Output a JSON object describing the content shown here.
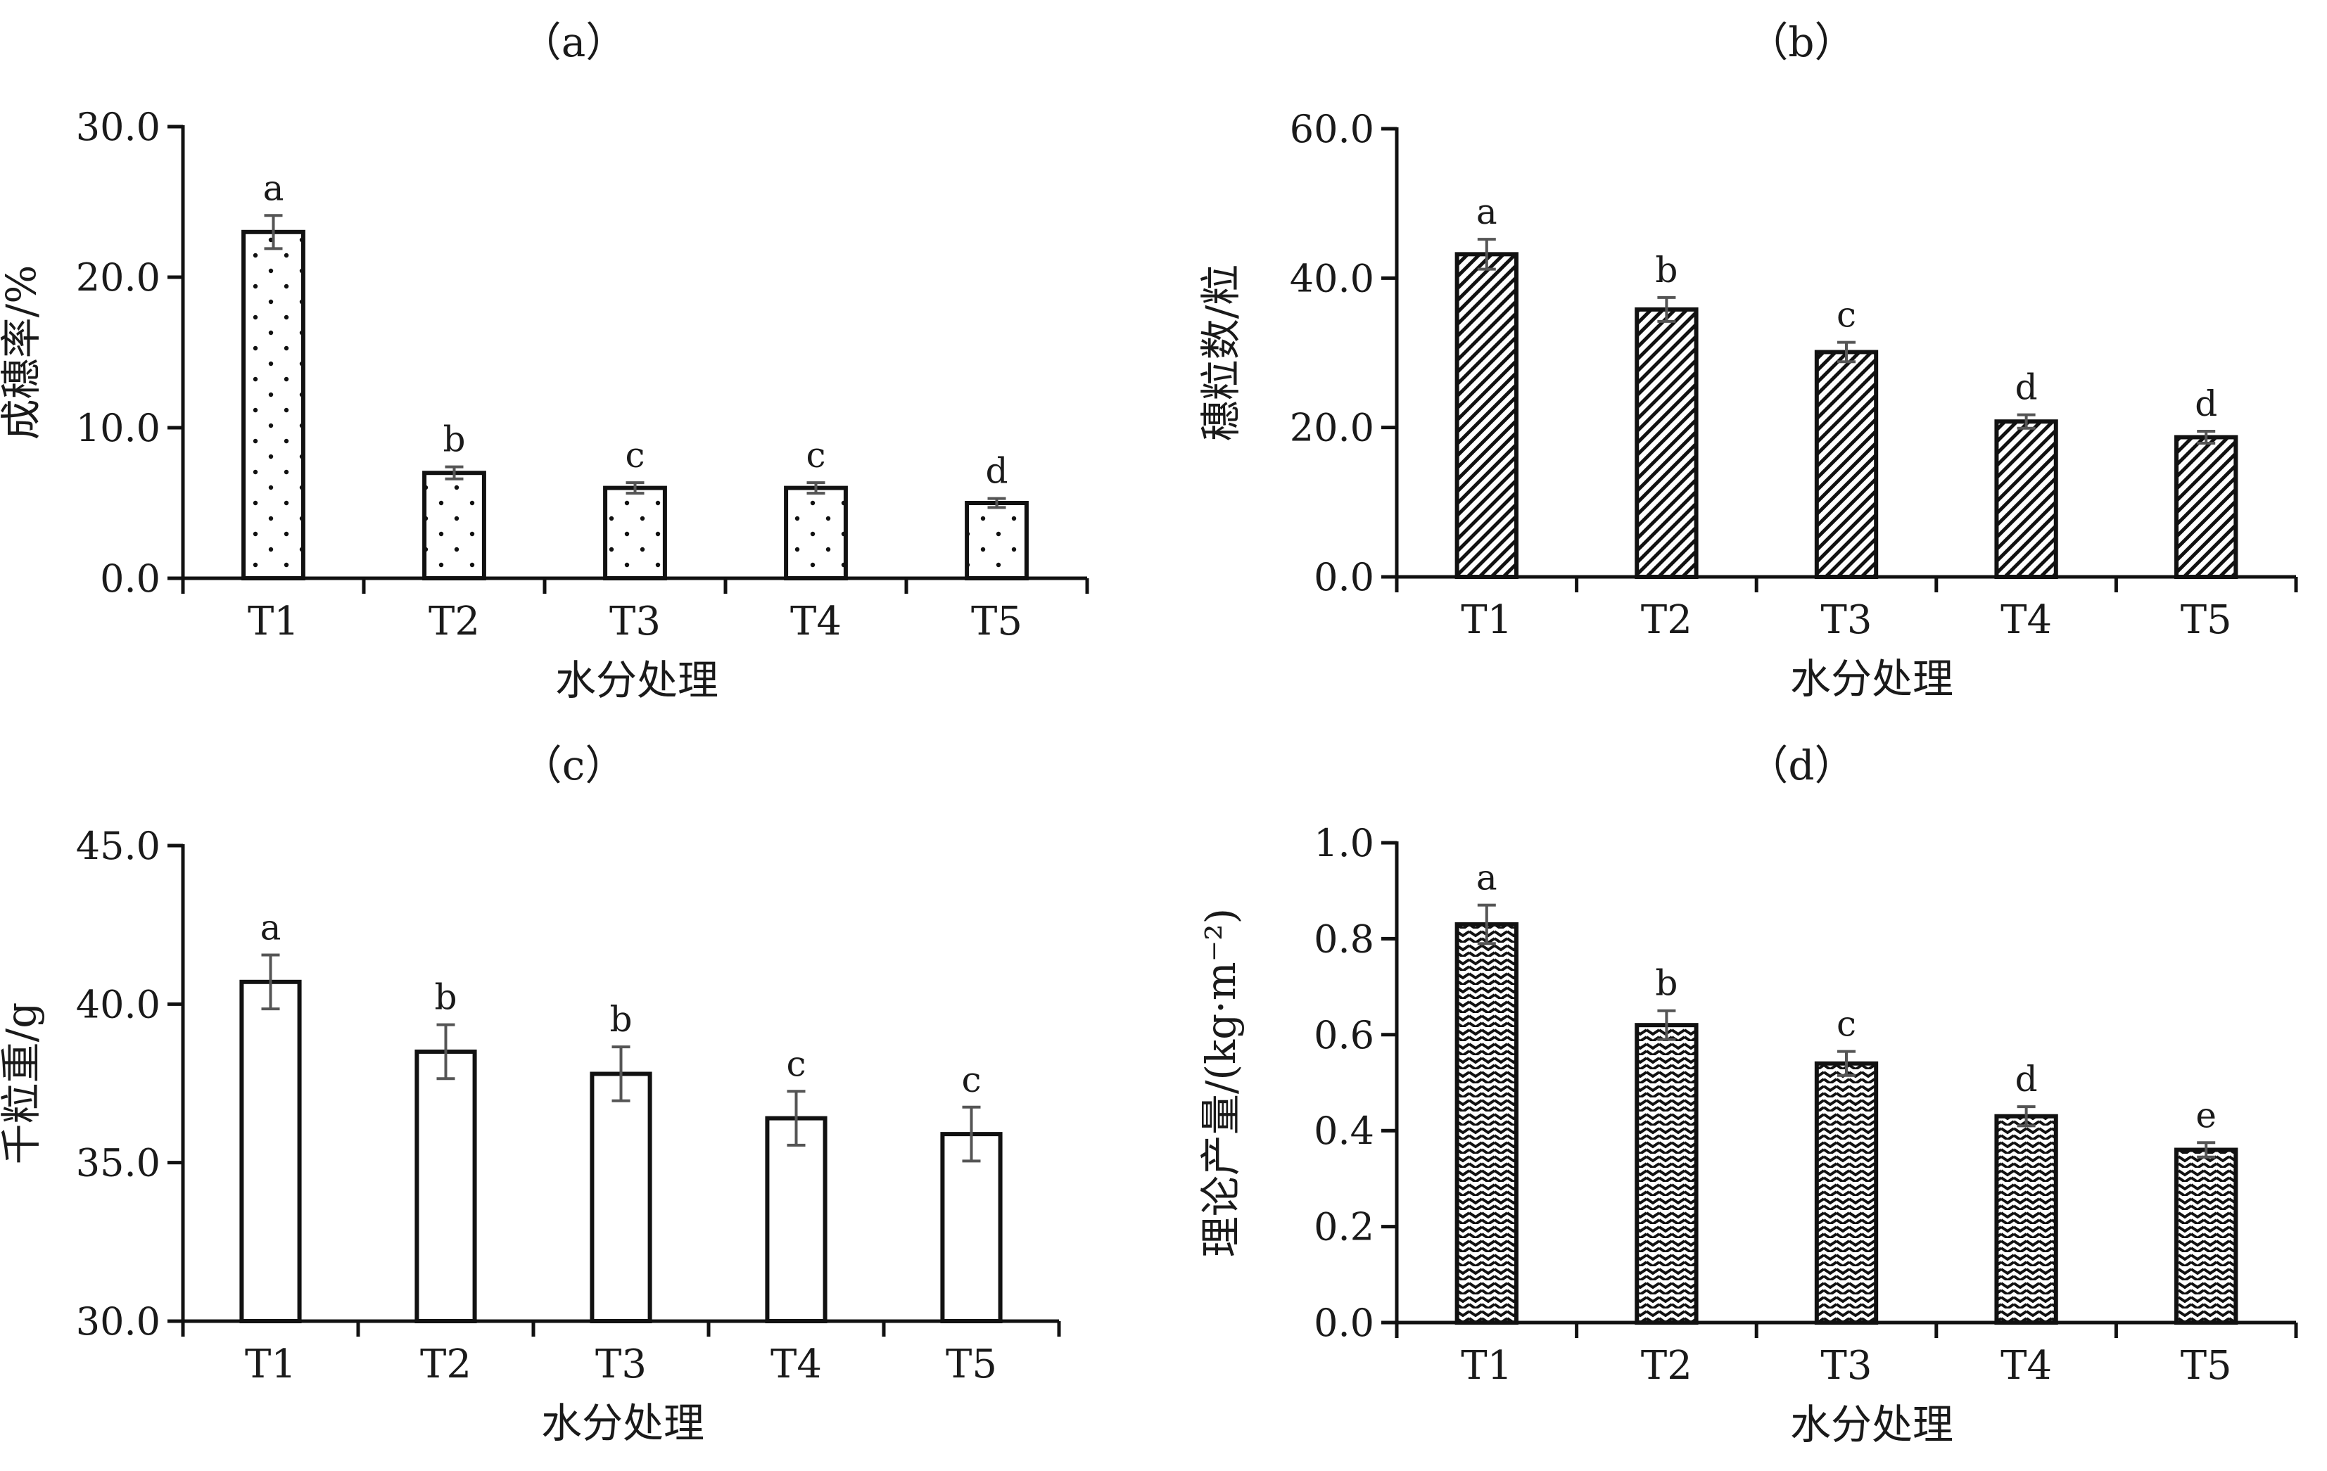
{
  "chart_data": [
    {
      "type": "bar",
      "panel_label": "（a）",
      "xlabel": "水分处理",
      "ylabel": "成穗率/%",
      "categories": [
        "T1",
        "T2",
        "T3",
        "T4",
        "T5"
      ],
      "values": [
        23.0,
        7.0,
        6.0,
        6.0,
        5.0
      ],
      "errors": [
        1.1,
        0.4,
        0.35,
        0.35,
        0.3
      ],
      "significance": [
        "a",
        "b",
        "c",
        "c",
        "d"
      ],
      "ylim": [
        0,
        30
      ],
      "yticks": [
        0,
        10,
        20,
        30
      ],
      "ytick_labels": [
        "0.0",
        "10.0",
        "20.0",
        "30.0"
      ],
      "pattern": "dots"
    },
    {
      "type": "bar",
      "panel_label": "（b）",
      "xlabel": "水分处理",
      "ylabel": "穗粒数/粒",
      "categories": [
        "T1",
        "T2",
        "T3",
        "T4",
        "T5"
      ],
      "values": [
        43.2,
        35.8,
        30.1,
        20.8,
        18.7
      ],
      "errors": [
        2.0,
        1.6,
        1.3,
        0.9,
        0.8
      ],
      "significance": [
        "a",
        "b",
        "c",
        "d",
        "d"
      ],
      "ylim": [
        0,
        60
      ],
      "yticks": [
        0,
        20,
        40,
        60
      ],
      "ytick_labels": [
        "0.0",
        "20.0",
        "40.0",
        "60.0"
      ],
      "pattern": "diagonal"
    },
    {
      "type": "bar",
      "panel_label": "（c）",
      "xlabel": "水分处理",
      "ylabel": "千粒重/g",
      "categories": [
        "T1",
        "T2",
        "T3",
        "T4",
        "T5"
      ],
      "values": [
        40.7,
        38.5,
        37.8,
        36.4,
        35.9
      ],
      "errors": [
        0.85,
        0.85,
        0.85,
        0.85,
        0.85
      ],
      "significance": [
        "a",
        "b",
        "b",
        "c",
        "c"
      ],
      "ylim": [
        30,
        45
      ],
      "yticks": [
        30,
        35,
        40,
        45
      ],
      "ytick_labels": [
        "30.0",
        "35.0",
        "40.0",
        "45.0"
      ],
      "pattern": "none"
    },
    {
      "type": "bar",
      "panel_label": "（d）",
      "xlabel": "水分处理",
      "ylabel": "理论产量/(kg·m⁻²)",
      "categories": [
        "T1",
        "T2",
        "T3",
        "T4",
        "T5"
      ],
      "values": [
        0.83,
        0.62,
        0.54,
        0.43,
        0.36
      ],
      "errors": [
        0.04,
        0.03,
        0.025,
        0.02,
        0.015
      ],
      "significance": [
        "a",
        "b",
        "c",
        "d",
        "e"
      ],
      "ylim": [
        0,
        1
      ],
      "yticks": [
        0,
        0.2,
        0.4,
        0.6,
        0.8,
        1.0
      ],
      "ytick_labels": [
        "0.0",
        "0.2",
        "0.4",
        "0.6",
        "0.8",
        "1.0"
      ],
      "pattern": "zigzag"
    }
  ]
}
